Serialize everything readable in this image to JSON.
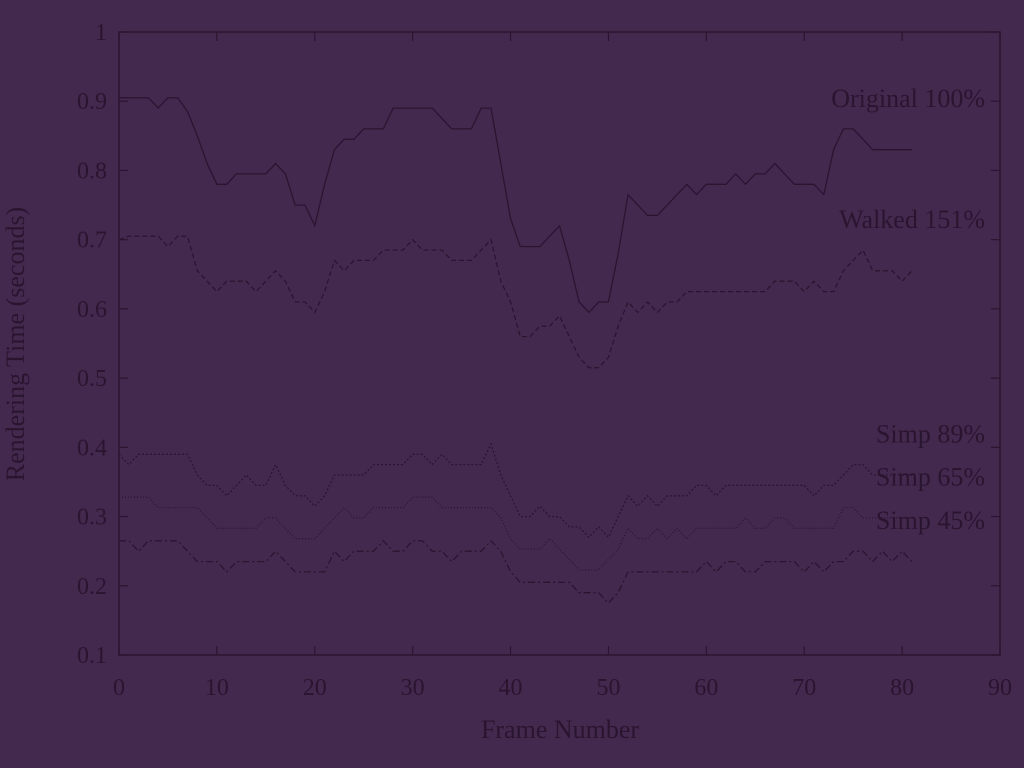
{
  "chart_data": {
    "type": "line",
    "xlabel": "Frame Number",
    "ylabel": "Rendering Time (seconds)",
    "xlim": [
      0,
      90
    ],
    "ylim": [
      0.1,
      1.0
    ],
    "xticks": [
      0,
      10,
      20,
      30,
      40,
      50,
      60,
      70,
      80,
      90
    ],
    "yticks": [
      "0.1",
      "0.2",
      "0.3",
      "0.4",
      "0.5",
      "0.6",
      "0.7",
      "0.8",
      "0.9",
      "1"
    ],
    "grid": false,
    "legend": "inline labels at right",
    "series": [
      {
        "name": "Original 100%",
        "style": "solid",
        "x": [
          0,
          1,
          2,
          3,
          4,
          5,
          6,
          7,
          8,
          9,
          10,
          11,
          12,
          13,
          14,
          15,
          16,
          17,
          18,
          19,
          20,
          21,
          22,
          23,
          24,
          25,
          26,
          27,
          28,
          29,
          30,
          31,
          32,
          33,
          34,
          35,
          36,
          37,
          38,
          39,
          40,
          41,
          42,
          43,
          44,
          45,
          46,
          47,
          48,
          49,
          50,
          51,
          52,
          53,
          54,
          55,
          56,
          57,
          58,
          59,
          60,
          61,
          62,
          63,
          64,
          65,
          66,
          67,
          68,
          69,
          70,
          71,
          72,
          73,
          74,
          75,
          76,
          77,
          78,
          79,
          80,
          81
        ],
        "values": [
          0.905,
          0.905,
          0.905,
          0.905,
          0.89,
          0.905,
          0.905,
          0.885,
          0.85,
          0.81,
          0.78,
          0.78,
          0.795,
          0.795,
          0.795,
          0.795,
          0.81,
          0.795,
          0.75,
          0.75,
          0.72,
          0.78,
          0.83,
          0.845,
          0.845,
          0.86,
          0.86,
          0.86,
          0.89,
          0.89,
          0.89,
          0.89,
          0.89,
          0.875,
          0.86,
          0.86,
          0.86,
          0.89,
          0.89,
          0.81,
          0.73,
          0.69,
          0.69,
          0.69,
          0.705,
          0.72,
          0.67,
          0.61,
          0.595,
          0.61,
          0.61,
          0.68,
          0.765,
          0.75,
          0.735,
          0.735,
          0.75,
          0.765,
          0.78,
          0.765,
          0.78,
          0.78,
          0.78,
          0.795,
          0.78,
          0.795,
          0.795,
          0.81,
          0.795,
          0.78,
          0.78,
          0.78,
          0.765,
          0.83,
          0.86,
          0.86,
          0.845,
          0.83,
          0.83,
          0.83,
          0.83,
          0.83
        ]
      },
      {
        "name": "Walked 151%",
        "style": "dashed",
        "x": [
          0,
          1,
          2,
          3,
          4,
          5,
          6,
          7,
          8,
          9,
          10,
          11,
          12,
          13,
          14,
          15,
          16,
          17,
          18,
          19,
          20,
          21,
          22,
          23,
          24,
          25,
          26,
          27,
          28,
          29,
          30,
          31,
          32,
          33,
          34,
          35,
          36,
          37,
          38,
          39,
          40,
          41,
          42,
          43,
          44,
          45,
          46,
          47,
          48,
          49,
          50,
          51,
          52,
          53,
          54,
          55,
          56,
          57,
          58,
          59,
          60,
          61,
          62,
          63,
          64,
          65,
          66,
          67,
          68,
          69,
          70,
          71,
          72,
          73,
          74,
          75,
          76,
          77,
          78,
          79,
          80,
          81
        ],
        "values": [
          0.7,
          0.705,
          0.705,
          0.705,
          0.705,
          0.69,
          0.705,
          0.705,
          0.655,
          0.64,
          0.625,
          0.64,
          0.64,
          0.64,
          0.625,
          0.64,
          0.655,
          0.64,
          0.61,
          0.61,
          0.595,
          0.625,
          0.67,
          0.655,
          0.67,
          0.67,
          0.67,
          0.685,
          0.685,
          0.685,
          0.7,
          0.685,
          0.685,
          0.685,
          0.67,
          0.67,
          0.67,
          0.685,
          0.7,
          0.64,
          0.61,
          0.56,
          0.56,
          0.575,
          0.575,
          0.59,
          0.56,
          0.53,
          0.515,
          0.515,
          0.53,
          0.575,
          0.61,
          0.595,
          0.61,
          0.595,
          0.61,
          0.61,
          0.625,
          0.625,
          0.625,
          0.625,
          0.625,
          0.625,
          0.625,
          0.625,
          0.625,
          0.64,
          0.64,
          0.64,
          0.625,
          0.64,
          0.625,
          0.625,
          0.655,
          0.67,
          0.685,
          0.655,
          0.655,
          0.655,
          0.64,
          0.655
        ]
      },
      {
        "name": "Simp 89%",
        "style": "fine-dotted",
        "x": [
          0,
          1,
          2,
          3,
          4,
          5,
          6,
          7,
          8,
          9,
          10,
          11,
          12,
          13,
          14,
          15,
          16,
          17,
          18,
          19,
          20,
          21,
          22,
          23,
          24,
          25,
          26,
          27,
          28,
          29,
          30,
          31,
          32,
          33,
          34,
          35,
          36,
          37,
          38,
          39,
          40,
          41,
          42,
          43,
          44,
          45,
          46,
          47,
          48,
          49,
          50,
          51,
          52,
          53,
          54,
          55,
          56,
          57,
          58,
          59,
          60,
          61,
          62,
          63,
          64,
          65,
          66,
          67,
          68,
          69,
          70,
          71,
          72,
          73,
          74,
          75,
          76,
          77,
          78,
          79,
          80,
          81
        ],
        "values": [
          0.39,
          0.375,
          0.39,
          0.39,
          0.39,
          0.39,
          0.39,
          0.39,
          0.36,
          0.345,
          0.345,
          0.33,
          0.345,
          0.36,
          0.345,
          0.345,
          0.375,
          0.345,
          0.33,
          0.33,
          0.315,
          0.33,
          0.36,
          0.36,
          0.36,
          0.36,
          0.375,
          0.375,
          0.375,
          0.375,
          0.39,
          0.39,
          0.375,
          0.39,
          0.375,
          0.375,
          0.375,
          0.375,
          0.405,
          0.36,
          0.33,
          0.3,
          0.3,
          0.315,
          0.3,
          0.3,
          0.285,
          0.285,
          0.27,
          0.285,
          0.27,
          0.3,
          0.33,
          0.315,
          0.33,
          0.315,
          0.33,
          0.33,
          0.33,
          0.345,
          0.345,
          0.33,
          0.345,
          0.345,
          0.345,
          0.345,
          0.345,
          0.345,
          0.345,
          0.345,
          0.345,
          0.33,
          0.345,
          0.345,
          0.36,
          0.375,
          0.375,
          0.36,
          0.36,
          0.36,
          0.36,
          0.36
        ]
      },
      {
        "name": "Simp 65%",
        "style": "dotted",
        "x": [
          0,
          1,
          2,
          3,
          4,
          5,
          6,
          7,
          8,
          9,
          10,
          11,
          12,
          13,
          14,
          15,
          16,
          17,
          18,
          19,
          20,
          21,
          22,
          23,
          24,
          25,
          26,
          27,
          28,
          29,
          30,
          31,
          32,
          33,
          34,
          35,
          36,
          37,
          38,
          39,
          40,
          41,
          42,
          43,
          44,
          45,
          46,
          47,
          48,
          49,
          50,
          51,
          52,
          53,
          54,
          55,
          56,
          57,
          58,
          59,
          60,
          61,
          62,
          63,
          64,
          65,
          66,
          67,
          68,
          69,
          70,
          71,
          72,
          73,
          74,
          75,
          76,
          77,
          78,
          79,
          80,
          81
        ],
        "values": [
          0.328,
          0.328,
          0.328,
          0.328,
          0.313,
          0.313,
          0.313,
          0.313,
          0.313,
          0.298,
          0.283,
          0.283,
          0.283,
          0.283,
          0.283,
          0.298,
          0.298,
          0.283,
          0.268,
          0.268,
          0.268,
          0.283,
          0.298,
          0.313,
          0.298,
          0.298,
          0.313,
          0.313,
          0.313,
          0.313,
          0.328,
          0.328,
          0.328,
          0.313,
          0.313,
          0.313,
          0.313,
          0.313,
          0.313,
          0.298,
          0.268,
          0.253,
          0.253,
          0.253,
          0.268,
          0.253,
          0.238,
          0.223,
          0.223,
          0.223,
          0.238,
          0.253,
          0.283,
          0.268,
          0.268,
          0.283,
          0.268,
          0.283,
          0.268,
          0.283,
          0.283,
          0.283,
          0.283,
          0.283,
          0.298,
          0.283,
          0.283,
          0.298,
          0.298,
          0.283,
          0.283,
          0.283,
          0.283,
          0.283,
          0.313,
          0.313,
          0.298,
          0.298,
          0.298,
          0.298,
          0.298,
          0.298
        ]
      },
      {
        "name": "Simp 45%",
        "style": "dash-dot",
        "x": [
          0,
          1,
          2,
          3,
          4,
          5,
          6,
          7,
          8,
          9,
          10,
          11,
          12,
          13,
          14,
          15,
          16,
          17,
          18,
          19,
          20,
          21,
          22,
          23,
          24,
          25,
          26,
          27,
          28,
          29,
          30,
          31,
          32,
          33,
          34,
          35,
          36,
          37,
          38,
          39,
          40,
          41,
          42,
          43,
          44,
          45,
          46,
          47,
          48,
          49,
          50,
          51,
          52,
          53,
          54,
          55,
          56,
          57,
          58,
          59,
          60,
          61,
          62,
          63,
          64,
          65,
          66,
          67,
          68,
          69,
          70,
          71,
          72,
          73,
          74,
          75,
          76,
          77,
          78,
          79,
          80,
          81
        ],
        "values": [
          0.265,
          0.265,
          0.25,
          0.265,
          0.265,
          0.265,
          0.265,
          0.25,
          0.235,
          0.235,
          0.235,
          0.22,
          0.235,
          0.235,
          0.235,
          0.235,
          0.25,
          0.235,
          0.22,
          0.22,
          0.22,
          0.22,
          0.25,
          0.235,
          0.25,
          0.25,
          0.25,
          0.265,
          0.25,
          0.25,
          0.265,
          0.265,
          0.25,
          0.25,
          0.235,
          0.25,
          0.25,
          0.25,
          0.265,
          0.25,
          0.22,
          0.205,
          0.205,
          0.205,
          0.205,
          0.205,
          0.205,
          0.19,
          0.19,
          0.19,
          0.175,
          0.19,
          0.22,
          0.22,
          0.22,
          0.22,
          0.22,
          0.22,
          0.22,
          0.22,
          0.235,
          0.22,
          0.235,
          0.235,
          0.22,
          0.22,
          0.235,
          0.235,
          0.235,
          0.235,
          0.22,
          0.235,
          0.22,
          0.235,
          0.235,
          0.25,
          0.25,
          0.235,
          0.25,
          0.235,
          0.25,
          0.235
        ]
      }
    ]
  }
}
